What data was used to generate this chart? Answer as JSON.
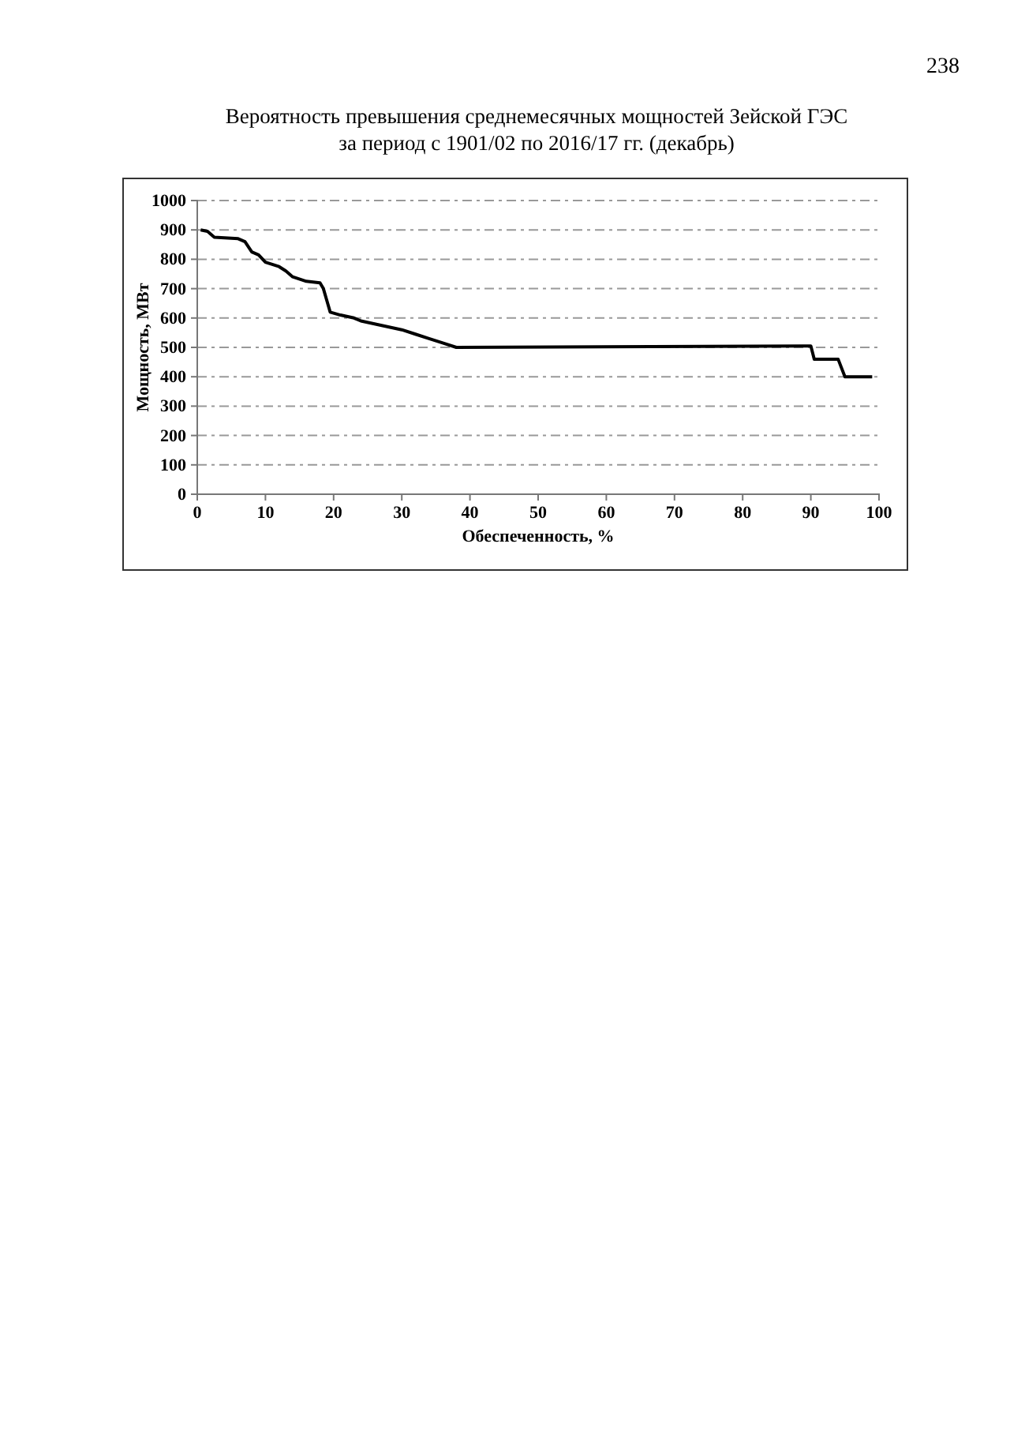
{
  "chart_data": {
    "type": "line",
    "title": "Вероятность превышения среднемесячных мощностей Зейской ГЭС",
    "subtitle": "за период с 1901/02 по 2016/17 гг. (декабрь)",
    "xlabel": "Обеспеченность, %",
    "ylabel": "Мощность, МВт",
    "annotations": [
      "238"
    ],
    "x": [
      0.5,
      1.5,
      2.5,
      6,
      7,
      8,
      9,
      10,
      12,
      13,
      14,
      16,
      18,
      18.5,
      19,
      19.5,
      21,
      23,
      24,
      26,
      28,
      30,
      32,
      34,
      36,
      38,
      90,
      90.5,
      94,
      95,
      99
    ],
    "series": [
      {
        "color": "#000000",
        "values": [
          900,
          895,
          875,
          870,
          860,
          825,
          815,
          790,
          775,
          760,
          740,
          725,
          720,
          700,
          660,
          620,
          610,
          600,
          590,
          580,
          570,
          560,
          545,
          530,
          515,
          500,
          505,
          460,
          460,
          400,
          400
        ]
      }
    ],
    "xlim": [
      0,
      100
    ],
    "xticks": [
      0,
      10,
      20,
      30,
      40,
      50,
      60,
      70,
      80,
      90,
      100
    ],
    "ylim": [
      0,
      1000
    ],
    "yticks": [
      0,
      100,
      200,
      300,
      400,
      500,
      600,
      700,
      800,
      900,
      1000
    ],
    "grid": "y",
    "marker": "none",
    "line_style": "solid"
  }
}
